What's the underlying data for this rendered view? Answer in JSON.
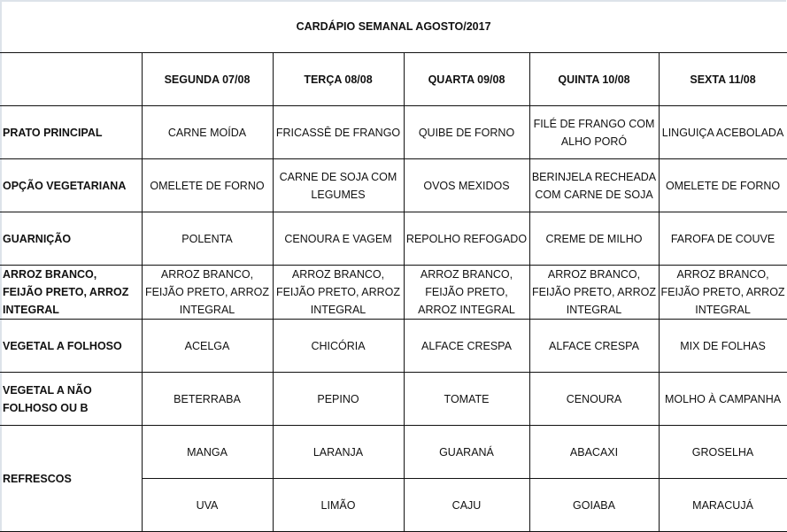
{
  "title": "CARDÁPIO SEMANAL AGOSTO/2017",
  "days": [
    "SEGUNDA   07/08",
    "TERÇA 08/08",
    "QUARTA 09/08",
    "QUINTA 10/08",
    "SEXTA 11/08"
  ],
  "rows": [
    {
      "label": "PRATO PRINCIPAL",
      "cells": [
        "CARNE MOÍDA",
        "FRICASSÊ DE FRANGO",
        "QUIBE DE FORNO",
        "FILÉ DE FRANGO COM ALHO PORÓ",
        "LINGUIÇA ACEBOLADA"
      ]
    },
    {
      "label": "OPÇÃO VEGETARIANA",
      "cells": [
        "OMELETE DE FORNO",
        "CARNE DE SOJA COM LEGUMES",
        "OVOS MEXIDOS",
        "BERINJELA RECHEADA COM CARNE DE SOJA",
        "OMELETE DE FORNO"
      ]
    },
    {
      "label": "GUARNIÇÃO",
      "cells": [
        "POLENTA",
        "CENOURA E VAGEM",
        "REPOLHO REFOGADO",
        "CREME DE MILHO",
        "FAROFA DE COUVE"
      ]
    },
    {
      "label": "ARROZ BRANCO, FEIJÃO PRETO, ARROZ INTEGRAL",
      "cells": [
        "ARROZ BRANCO, FEIJÃO PRETO, ARROZ INTEGRAL",
        "ARROZ BRANCO, FEIJÃO PRETO, ARROZ INTEGRAL",
        "ARROZ BRANCO, FEIJÃO PRETO, ARROZ INTEGRAL",
        "ARROZ BRANCO, FEIJÃO PRETO, ARROZ INTEGRAL",
        "ARROZ BRANCO, FEIJÃO PRETO, ARROZ INTEGRAL"
      ]
    },
    {
      "label": "VEGETAL A FOLHOSO",
      "cells": [
        "ACELGA",
        "CHICÓRIA",
        "ALFACE CRESPA",
        "ALFACE CRESPA",
        "MIX DE FOLHAS"
      ]
    },
    {
      "label": "VEGETAL A NÃO FOLHOSO OU B",
      "cells": [
        "BETERRABA",
        "PEPINO",
        "TOMATE",
        "CENOURA",
        "MOLHO À CAMPANHA"
      ]
    }
  ],
  "refrescos": {
    "label": "REFRESCOS",
    "row1": [
      "MANGA",
      "LARANJA",
      "GUARANÁ",
      "ABACAXI",
      "GROSELHA"
    ],
    "row2": [
      "UVA",
      "LIMÃO",
      "CAJU",
      "GOIABA",
      "MARACUJÁ"
    ]
  }
}
